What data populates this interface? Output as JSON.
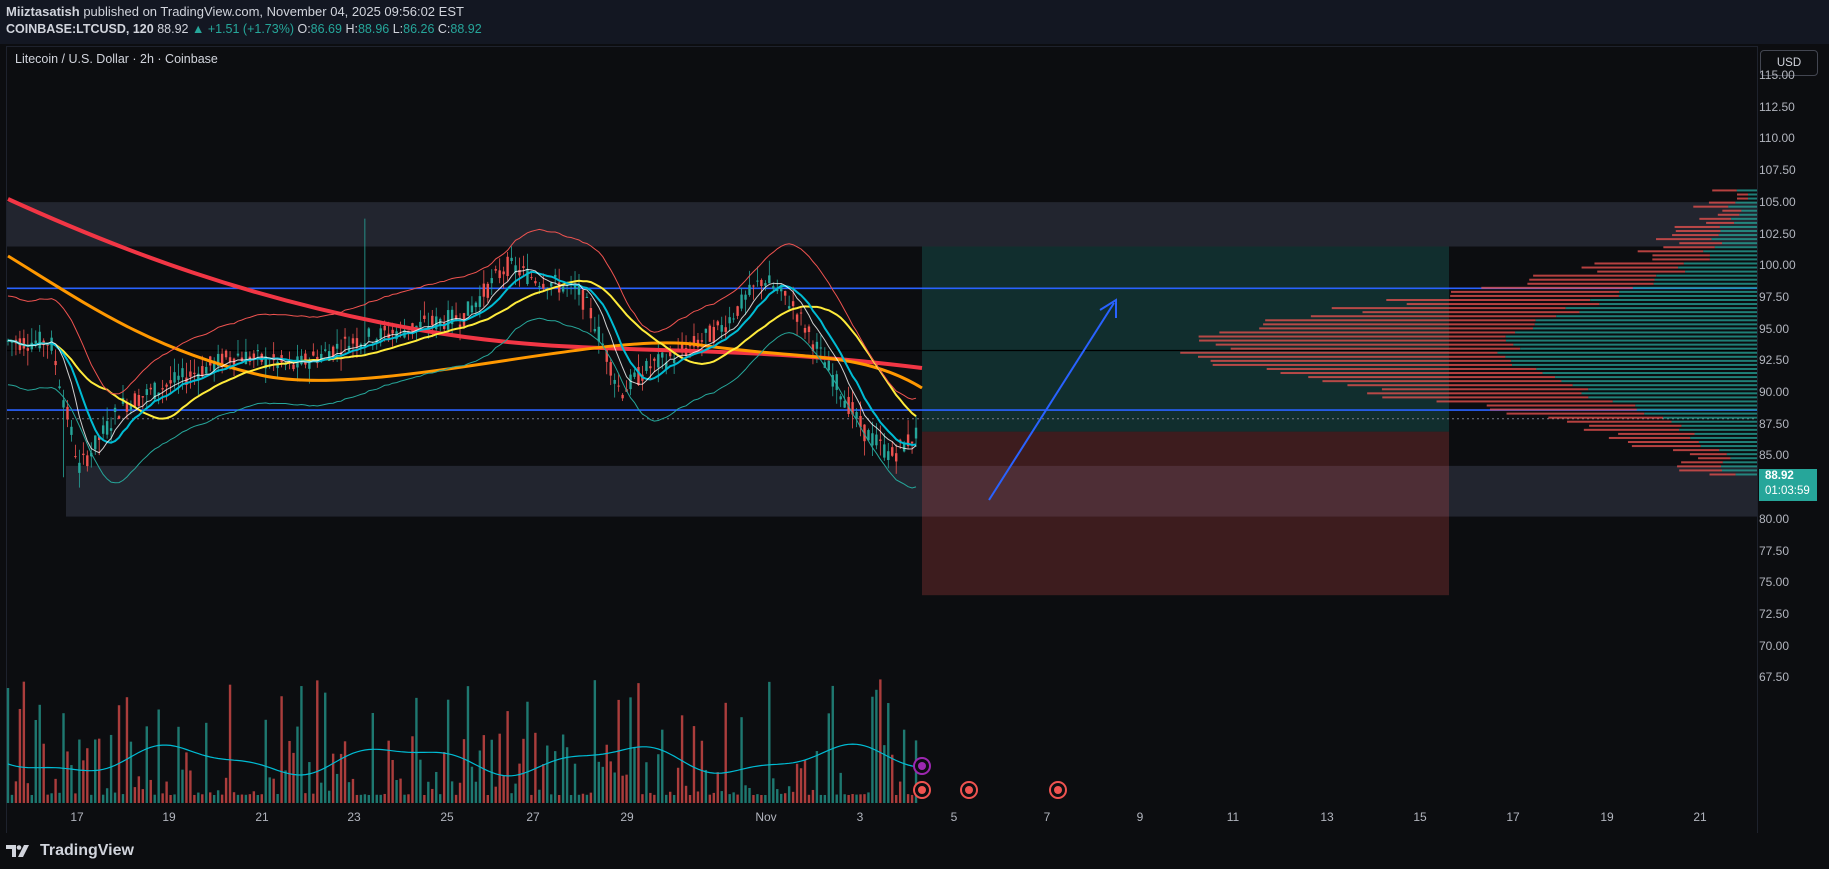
{
  "header": {
    "author": "Miiztasatish",
    "published": "published on TradingView.com, November 04, 2025 09:56:02 EST",
    "symbol": "COINBASE:LTCUSD, 120",
    "last": "88.92",
    "change": "▲ +1.51 (+1.73%)",
    "o_label": "O:",
    "o": "86.69",
    "h_label": "H:",
    "h": "88.96",
    "l_label": "L:",
    "l": "86.26",
    "c_label": "C:",
    "c": "88.92"
  },
  "legend_title": "Litecoin / U.S. Dollar · 2h · Coinbase",
  "currency": "USD",
  "current_price": {
    "price": "88.92",
    "countdown": "01:03:59"
  },
  "price_axis": [
    "115.00",
    "112.50",
    "110.00",
    "107.50",
    "105.00",
    "102.50",
    "100.00",
    "97.50",
    "95.00",
    "92.50",
    "90.00",
    "87.50",
    "85.00",
    "82.50",
    "80.00",
    "77.50",
    "75.00",
    "72.50",
    "70.00",
    "67.50"
  ],
  "date_axis": [
    "17",
    "19",
    "21",
    "23",
    "25",
    "27",
    "29",
    "Nov",
    "3",
    "5",
    "7",
    "9",
    "11",
    "13",
    "15",
    "17",
    "19",
    "21"
  ],
  "brand": "TradingView",
  "colors": {
    "up": "#26a69a",
    "down": "#ef5350",
    "hline": "#2962ff",
    "ma_red": "#f23645",
    "ma_orange": "#ff9800",
    "ma_yellow": "#ffeb3b",
    "ma_cyan": "#00bcd4"
  },
  "chart_data": {
    "type": "candlestick",
    "ylim": [
      67.5,
      117.5
    ],
    "horizontal_levels": [
      99.2,
      89.6
    ],
    "position_tool": {
      "entry": 87.9,
      "target": 102.5,
      "stop": 75.0
    },
    "resistance_zone": [
      102.5,
      106.0
    ],
    "support_zone": [
      81.2,
      85.2
    ]
  }
}
